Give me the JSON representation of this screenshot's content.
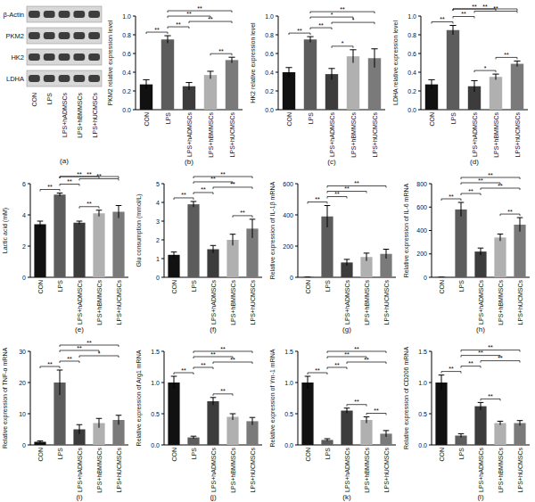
{
  "blot": {
    "label": "(a)",
    "rows": [
      "β-Actin",
      "PKM2",
      "HK2",
      "LDHA"
    ],
    "lanes": [
      "CON",
      "LPS",
      "LPS+hADMSCs",
      "LPS+hBMMSCs",
      "LPS+hUCMSCs"
    ]
  },
  "chart_data": [
    {
      "type": "bar",
      "title": "(b)",
      "ylabel": "PKM2 relative expression level",
      "categories": [
        "CON",
        "LPS",
        "LPS+hADMSCs",
        "LPS+hBMMSCs",
        "LPS+hUCMSCs"
      ],
      "values": [
        0.27,
        0.75,
        0.25,
        0.37,
        0.53
      ],
      "errors": [
        0.05,
        0.04,
        0.04,
        0.04,
        0.03
      ],
      "colors": [
        "#111111",
        "#5c5c5c",
        "#3c3c3c",
        "#b0b0b0",
        "#7a7a7a"
      ],
      "ylim": [
        0,
        1
      ],
      "yticks": [
        {
          "value": 0,
          "label": "0.0"
        },
        0.2,
        0.4,
        0.6,
        0.8,
        {
          "value": 1,
          "label": "1.0"
        }
      ],
      "annotations": [
        {
          "from": 0,
          "to": 1,
          "label": "**"
        },
        {
          "from": 3,
          "to": 4,
          "label": "**"
        },
        {
          "from": 1,
          "to": 2,
          "label": "**"
        },
        {
          "from": 2,
          "to": 4,
          "label": "**"
        },
        {
          "from": 1,
          "to": 3,
          "label": "**"
        },
        {
          "from": 1,
          "to": 4,
          "label": "**"
        }
      ]
    },
    {
      "type": "bar",
      "title": "(c)",
      "ylabel": "HK2 relative expression level",
      "categories": [
        "CON",
        "LPS",
        "LPS+hADMSCs",
        "LPS+hBMMSCs",
        "LPS+hUCMSCs"
      ],
      "values": [
        0.4,
        0.75,
        0.38,
        0.57,
        0.55
      ],
      "errors": [
        0.05,
        0.03,
        0.06,
        0.07,
        0.1
      ],
      "colors": [
        "#111111",
        "#5c5c5c",
        "#3c3c3c",
        "#b0b0b0",
        "#7a7a7a"
      ],
      "ylim": [
        0,
        1
      ],
      "yticks": [
        {
          "value": 0,
          "label": "0.0"
        },
        0.2,
        0.4,
        0.6,
        0.8,
        {
          "value": 1,
          "label": "1.0"
        }
      ],
      "annotations": [
        {
          "from": 0,
          "to": 1,
          "label": "**"
        },
        {
          "from": 2,
          "to": 3,
          "label": "*"
        },
        {
          "from": 1,
          "to": 2,
          "label": "**"
        },
        {
          "from": 2,
          "to": 4,
          "label": "*"
        },
        {
          "from": 1,
          "to": 3,
          "label": "*"
        },
        {
          "from": 1,
          "to": 4,
          "label": "**"
        }
      ]
    },
    {
      "type": "bar",
      "title": "(d)",
      "ylabel": "LDHA relative expression level",
      "categories": [
        "CON",
        "LPS",
        "LPS+hADMSCs",
        "LPS+hBMMSCs",
        "LPS+hUCMSCs"
      ],
      "values": [
        0.27,
        0.85,
        0.25,
        0.35,
        0.49
      ],
      "errors": [
        0.05,
        0.05,
        0.06,
        0.03,
        0.03
      ],
      "colors": [
        "#111111",
        "#5c5c5c",
        "#3c3c3c",
        "#b0b0b0",
        "#7a7a7a"
      ],
      "ylim": [
        0,
        1
      ],
      "yticks": [
        {
          "value": 0,
          "label": "0.0"
        },
        0.2,
        0.4,
        0.6,
        0.8,
        {
          "value": 1,
          "label": "1.0"
        }
      ],
      "annotations": [
        {
          "from": 0,
          "to": 1,
          "label": "**"
        },
        {
          "from": 2,
          "to": 3,
          "label": "*"
        },
        {
          "from": 3,
          "to": 4,
          "label": "**"
        },
        {
          "from": 1,
          "to": 2,
          "label": "**"
        },
        {
          "from": 2,
          "to": 4,
          "label": "**"
        },
        {
          "from": 1,
          "to": 3,
          "label": "**"
        },
        {
          "from": 1,
          "to": 4,
          "label": "**"
        }
      ]
    },
    {
      "type": "bar",
      "title": "(e)",
      "ylabel": "Lactic acid (mM)",
      "categories": [
        "CON",
        "LPS",
        "LPS+hADMSCs",
        "LPS+hBMMSCs",
        "LPS+hUCMSCs"
      ],
      "values": [
        3.4,
        5.3,
        3.5,
        4.1,
        4.2
      ],
      "errors": [
        0.2,
        0.1,
        0.1,
        0.2,
        0.4
      ],
      "colors": [
        "#111111",
        "#5c5c5c",
        "#3c3c3c",
        "#b0b0b0",
        "#7a7a7a"
      ],
      "ylim": [
        0,
        6
      ],
      "yticks": [
        0,
        2,
        4,
        6
      ],
      "annotations": [
        {
          "from": 0,
          "to": 1,
          "label": "**"
        },
        {
          "from": 2,
          "to": 3,
          "label": "**"
        },
        {
          "from": 1,
          "to": 2,
          "label": "**"
        },
        {
          "from": 2,
          "to": 4,
          "label": "**"
        },
        {
          "from": 1,
          "to": 3,
          "label": "**"
        },
        {
          "from": 1,
          "to": 4,
          "label": "**"
        }
      ]
    },
    {
      "type": "bar",
      "title": "(f)",
      "ylabel": "Glu consumption (mmol/L)",
      "categories": [
        "CON",
        "LPS",
        "LPS+hADMSCs",
        "LPS+hBMMSCs",
        "LPS+hUCMSCs"
      ],
      "values": [
        1.2,
        3.9,
        1.5,
        2.0,
        2.6
      ],
      "errors": [
        0.15,
        0.15,
        0.2,
        0.3,
        0.5
      ],
      "colors": [
        "#111111",
        "#5c5c5c",
        "#3c3c3c",
        "#b0b0b0",
        "#7a7a7a"
      ],
      "ylim": [
        0,
        5
      ],
      "yticks": [
        0,
        1,
        2,
        3,
        4,
        5
      ],
      "annotations": [
        {
          "from": 0,
          "to": 1,
          "label": "**"
        },
        {
          "from": 3,
          "to": 4,
          "label": "**"
        },
        {
          "from": 1,
          "to": 2,
          "label": "**"
        },
        {
          "from": 2,
          "to": 4,
          "label": "**"
        },
        {
          "from": 1,
          "to": 3,
          "label": "**"
        },
        {
          "from": 1,
          "to": 4,
          "label": "**"
        }
      ]
    },
    {
      "type": "bar",
      "title": "(g)",
      "ylabel": "Relative expression of IL-1β mRNA",
      "categories": [
        "CON",
        "LPS",
        "LPS+hADMSCs",
        "LPS+hBMMSCs",
        "LPS+hUCMSCs"
      ],
      "values": [
        1,
        390,
        95,
        130,
        150
      ],
      "errors": [
        0.5,
        70,
        20,
        25,
        30
      ],
      "colors": [
        "#111111",
        "#5c5c5c",
        "#3c3c3c",
        "#b0b0b0",
        "#7a7a7a"
      ],
      "ylim": [
        0,
        600
      ],
      "yticks": [
        0,
        200,
        400,
        600
      ],
      "annotations": [
        {
          "from": 0,
          "to": 1,
          "label": "**"
        },
        {
          "from": 1,
          "to": 2,
          "label": "**"
        },
        {
          "from": 1,
          "to": 3,
          "label": "**"
        },
        {
          "from": 1,
          "to": 4,
          "label": "**"
        }
      ]
    },
    {
      "type": "bar",
      "title": "(h)",
      "ylabel": "Relative expression of IL-6 mRNA",
      "categories": [
        "CON",
        "LPS",
        "LPS+hADMSCs",
        "LPS+hBMMSCs",
        "LPS+hUCMSCs"
      ],
      "values": [
        1,
        580,
        220,
        340,
        450
      ],
      "errors": [
        0.5,
        60,
        30,
        30,
        60
      ],
      "colors": [
        "#111111",
        "#5c5c5c",
        "#3c3c3c",
        "#b0b0b0",
        "#7a7a7a"
      ],
      "ylim": [
        0,
        800
      ],
      "yticks": [
        0,
        200,
        400,
        600,
        800
      ],
      "annotations": [
        {
          "from": 0,
          "to": 1,
          "label": "**"
        },
        {
          "from": 3,
          "to": 4,
          "label": "**"
        },
        {
          "from": 1,
          "to": 2,
          "label": "**"
        },
        {
          "from": 2,
          "to": 4,
          "label": "**"
        },
        {
          "from": 1,
          "to": 3,
          "label": "**"
        },
        {
          "from": 1,
          "to": 4,
          "label": "**"
        }
      ]
    },
    {
      "type": "bar",
      "title": "(i)",
      "ylabel": "Relative expression of TNF-α mRNA",
      "categories": [
        "CON",
        "LPS",
        "LPS+hADMSCs",
        "LPS+hBMMSCs",
        "LPS+hUCMSCs"
      ],
      "values": [
        1,
        20,
        5,
        7,
        8
      ],
      "errors": [
        0.3,
        4,
        1.5,
        1.5,
        1.5
      ],
      "colors": [
        "#111111",
        "#5c5c5c",
        "#3c3c3c",
        "#b0b0b0",
        "#7a7a7a"
      ],
      "ylim": [
        0,
        30
      ],
      "yticks": [
        0,
        10,
        20,
        30
      ],
      "annotations": [
        {
          "from": 0,
          "to": 1,
          "label": "**"
        },
        {
          "from": 1,
          "to": 2,
          "label": "**"
        },
        {
          "from": 2,
          "to": 4,
          "label": "*"
        },
        {
          "from": 1,
          "to": 3,
          "label": "**"
        },
        {
          "from": 1,
          "to": 4,
          "label": "**"
        }
      ]
    },
    {
      "type": "bar",
      "title": "(j)",
      "ylabel": "Relative expression of Arg1 mRNA",
      "categories": [
        "CON",
        "LPS",
        "LPS+hADMSCs",
        "LPS+hBMMSCs",
        "LPS+hUCMSCs"
      ],
      "values": [
        1.0,
        0.12,
        0.7,
        0.45,
        0.38
      ],
      "errors": [
        0.1,
        0.02,
        0.06,
        0.05,
        0.06
      ],
      "colors": [
        "#111111",
        "#5c5c5c",
        "#3c3c3c",
        "#b0b0b0",
        "#7a7a7a"
      ],
      "ylim": [
        0,
        1.5
      ],
      "yticks": [
        {
          "value": 0,
          "label": "0.0"
        },
        0.5,
        {
          "value": 1,
          "label": "1.0"
        },
        1.5
      ],
      "annotations": [
        {
          "from": 0,
          "to": 1,
          "label": "**"
        },
        {
          "from": 2,
          "to": 3,
          "label": "**"
        },
        {
          "from": 1,
          "to": 2,
          "label": "**"
        },
        {
          "from": 2,
          "to": 4,
          "label": "**"
        },
        {
          "from": 1,
          "to": 3,
          "label": "**"
        },
        {
          "from": 1,
          "to": 4,
          "label": "**"
        }
      ]
    },
    {
      "type": "bar",
      "title": "(k)",
      "ylabel": "Relative expression of Ym-1 mRNA",
      "categories": [
        "CON",
        "LPS",
        "LPS+hADMSCs",
        "LPS+hBMMSCs",
        "LPS+hUCMSCs"
      ],
      "values": [
        1.0,
        0.08,
        0.55,
        0.4,
        0.18
      ],
      "errors": [
        0.1,
        0.02,
        0.04,
        0.05,
        0.05
      ],
      "colors": [
        "#111111",
        "#5c5c5c",
        "#3c3c3c",
        "#b0b0b0",
        "#7a7a7a"
      ],
      "ylim": [
        0,
        1.5
      ],
      "yticks": [
        {
          "value": 0,
          "label": "0.0"
        },
        0.5,
        {
          "value": 1,
          "label": "1.0"
        },
        1.5
      ],
      "annotations": [
        {
          "from": 0,
          "to": 1,
          "label": "**"
        },
        {
          "from": 3,
          "to": 4,
          "label": "**"
        },
        {
          "from": 2,
          "to": 3,
          "label": "**"
        },
        {
          "from": 1,
          "to": 2,
          "label": "**"
        },
        {
          "from": 2,
          "to": 4,
          "label": "**"
        },
        {
          "from": 1,
          "to": 3,
          "label": "**"
        },
        {
          "from": 1,
          "to": 4,
          "label": "**"
        }
      ]
    },
    {
      "type": "bar",
      "title": "(l)",
      "ylabel": "Relative expression of CD206 mRNA",
      "categories": [
        "CON",
        "LPS",
        "LPS+hADMSCs",
        "LPS+hBMMSCs",
        "LPS+hUCMSCs"
      ],
      "values": [
        1.0,
        0.15,
        0.62,
        0.35,
        0.35
      ],
      "errors": [
        0.12,
        0.03,
        0.06,
        0.03,
        0.04
      ],
      "colors": [
        "#111111",
        "#5c5c5c",
        "#3c3c3c",
        "#b0b0b0",
        "#7a7a7a"
      ],
      "ylim": [
        0,
        1.5
      ],
      "yticks": [
        {
          "value": 0,
          "label": "0.0"
        },
        0.5,
        {
          "value": 1,
          "label": "1.0"
        },
        1.5
      ],
      "annotations": [
        {
          "from": 0,
          "to": 1,
          "label": "**"
        },
        {
          "from": 2,
          "to": 3,
          "label": "**"
        },
        {
          "from": 1,
          "to": 2,
          "label": "**"
        },
        {
          "from": 2,
          "to": 4,
          "label": "**"
        },
        {
          "from": 1,
          "to": 3,
          "label": "**"
        },
        {
          "from": 1,
          "to": 4,
          "label": "**"
        }
      ]
    }
  ]
}
